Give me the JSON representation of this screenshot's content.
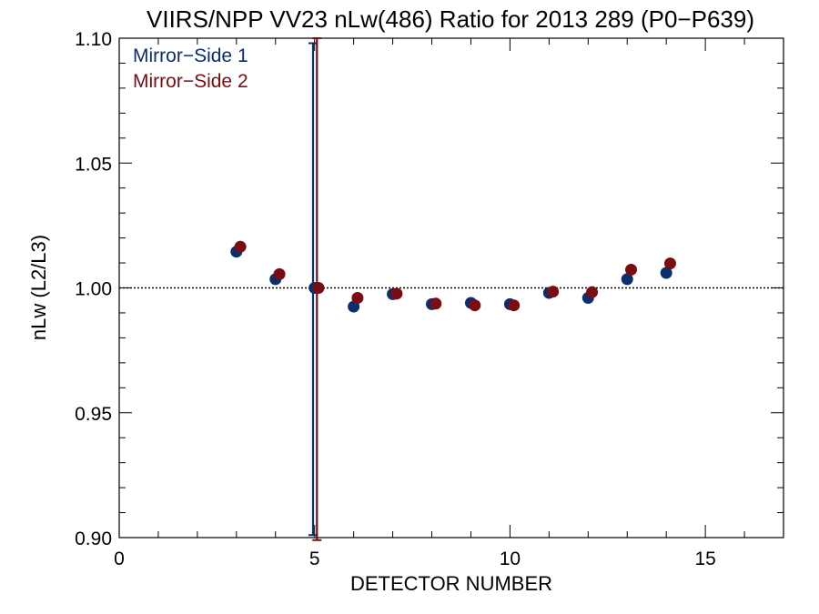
{
  "chart_data": {
    "type": "scatter",
    "title": "VIIRS/NPP VV23 nLw(486) Ratio for 2013 289 (P0−P639)",
    "xlabel": "DETECTOR NUMBER",
    "ylabel": "nLw (L2/L3)",
    "xlim": [
      0,
      17
    ],
    "ylim": [
      0.9,
      1.1
    ],
    "x_ticks": [
      0,
      5,
      10,
      15
    ],
    "x_tick_labels": [
      "0",
      "5",
      "10",
      "15"
    ],
    "y_ticks": [
      0.9,
      0.95,
      1.0,
      1.05,
      1.1
    ],
    "y_tick_labels": [
      "0.90",
      "0.95",
      "1.00",
      "1.05",
      "1.10"
    ],
    "reference_line": 1.0,
    "legend_position": "top-left",
    "series": [
      {
        "name": "Mirror−Side 1",
        "color": "#0b2f6e",
        "x": [
          3,
          4,
          5,
          6,
          7,
          8,
          9,
          10,
          11,
          12,
          13,
          14
        ],
        "y": [
          1.0145,
          1.0035,
          1.0,
          0.9925,
          0.9975,
          0.9935,
          0.994,
          0.9935,
          0.998,
          0.996,
          1.0035,
          1.006
        ],
        "error_bar": {
          "x": 5,
          "low": 0.901,
          "high": 1.098
        }
      },
      {
        "name": "Mirror−Side 2",
        "color": "#7a0d12",
        "x": [
          3,
          4,
          5,
          6,
          7,
          8,
          9,
          10,
          11,
          12,
          13,
          14
        ],
        "y": [
          1.0165,
          1.0055,
          1.0,
          0.996,
          0.9977,
          0.9937,
          0.993,
          0.993,
          0.9985,
          0.9983,
          1.0073,
          1.0098
        ],
        "error_bar": {
          "x": 5,
          "low": 0.899,
          "high": 1.1
        }
      }
    ]
  }
}
